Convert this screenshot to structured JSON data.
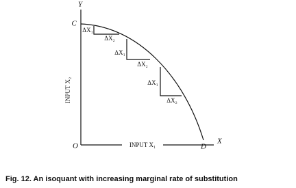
{
  "axes": {
    "y_label": "Y",
    "x_label": "X",
    "origin": "O",
    "y_intercept": "C",
    "x_intercept": "D",
    "y_title": "INPUT X₂",
    "x_title": "INPUT X₁"
  },
  "steps": [
    {
      "vertical": "ΔX₁",
      "horizontal": "ΔX₂"
    },
    {
      "vertical": "ΔX₁",
      "horizontal": "ΔX₂"
    },
    {
      "vertical": "ΔX₁",
      "horizontal": "ΔX₂"
    }
  ],
  "caption": "Fig. 12. An isoquant with increasing marginal rate of substitution"
}
